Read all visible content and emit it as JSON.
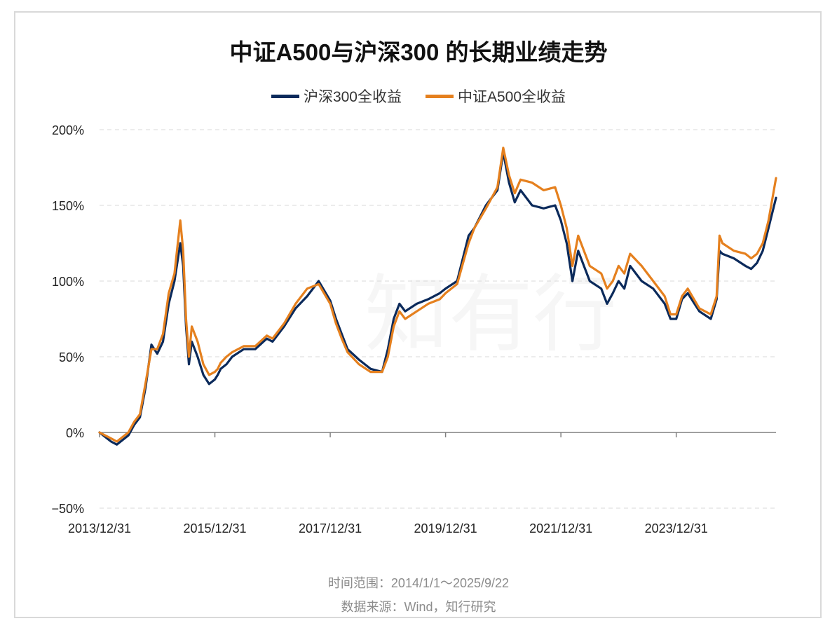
{
  "title": "中证A500与沪深300 的长期业绩走势",
  "footer": {
    "time_range": "时间范围：2014/1/1～2025/9/22",
    "source": "数据来源：Wind，知行研究"
  },
  "watermark": "知有行",
  "colors": {
    "hs300": "#0b2a5b",
    "a500": "#e5801e",
    "grid": "#d9d9d9",
    "axis": "#808080"
  },
  "chart_data": {
    "type": "line",
    "title": "中证A500与沪深300 的长期业绩走势",
    "xlabel": "",
    "ylabel": "",
    "ylim": [
      -50,
      200
    ],
    "yticks": [
      -50,
      0,
      50,
      100,
      150,
      200
    ],
    "ytick_labels": [
      "−50%",
      "0%",
      "50%",
      "100%",
      "150%",
      "200%"
    ],
    "xlim": [
      2014.0,
      2025.73
    ],
    "xticks": [
      2014.0,
      2016.0,
      2018.0,
      2020.0,
      2022.0,
      2024.0
    ],
    "xtick_labels": [
      "2013/12/31",
      "2015/12/31",
      "2017/12/31",
      "2019/12/31",
      "2021/12/31",
      "2023/12/31"
    ],
    "legend_position": "top-center",
    "series": [
      {
        "name": "沪深300全收益",
        "color": "#0b2a5b",
        "x": [
          2014.0,
          2014.1,
          2014.2,
          2014.3,
          2014.4,
          2014.5,
          2014.6,
          2014.7,
          2014.8,
          2014.9,
          2015.0,
          2015.1,
          2015.2,
          2015.3,
          2015.4,
          2015.45,
          2015.5,
          2015.55,
          2015.6,
          2015.7,
          2015.8,
          2015.9,
          2016.0,
          2016.05,
          2016.1,
          2016.2,
          2016.3,
          2016.5,
          2016.7,
          2016.9,
          2017.0,
          2017.2,
          2017.4,
          2017.6,
          2017.8,
          2018.0,
          2018.1,
          2018.2,
          2018.3,
          2018.5,
          2018.7,
          2018.9,
          2019.0,
          2019.1,
          2019.2,
          2019.3,
          2019.5,
          2019.7,
          2019.9,
          2020.0,
          2020.2,
          2020.4,
          2020.5,
          2020.7,
          2020.9,
          2021.0,
          2021.1,
          2021.2,
          2021.3,
          2021.5,
          2021.7,
          2021.9,
          2022.0,
          2022.1,
          2022.2,
          2022.3,
          2022.4,
          2022.5,
          2022.7,
          2022.8,
          2022.9,
          2023.0,
          2023.1,
          2023.2,
          2023.4,
          2023.6,
          2023.8,
          2023.9,
          2024.0,
          2024.1,
          2024.2,
          2024.4,
          2024.6,
          2024.7,
          2024.75,
          2024.8,
          2025.0,
          2025.2,
          2025.3,
          2025.4,
          2025.5,
          2025.6,
          2025.73
        ],
        "values": [
          0,
          -3,
          -6,
          -8,
          -5,
          -2,
          5,
          10,
          30,
          58,
          52,
          60,
          85,
          100,
          125,
          110,
          70,
          45,
          60,
          50,
          38,
          32,
          35,
          38,
          42,
          45,
          50,
          55,
          55,
          62,
          60,
          70,
          82,
          90,
          100,
          87,
          75,
          65,
          55,
          48,
          42,
          40,
          55,
          75,
          85,
          80,
          85,
          88,
          92,
          95,
          100,
          130,
          135,
          150,
          160,
          185,
          165,
          152,
          160,
          150,
          148,
          150,
          140,
          125,
          100,
          120,
          110,
          100,
          95,
          85,
          92,
          100,
          95,
          110,
          100,
          95,
          85,
          75,
          75,
          88,
          92,
          80,
          75,
          88,
          120,
          118,
          115,
          110,
          108,
          112,
          120,
          135,
          155
        ]
      },
      {
        "name": "中证A500全收益",
        "color": "#e5801e",
        "x": [
          2014.0,
          2014.1,
          2014.2,
          2014.3,
          2014.4,
          2014.5,
          2014.6,
          2014.7,
          2014.8,
          2014.9,
          2015.0,
          2015.1,
          2015.2,
          2015.3,
          2015.4,
          2015.45,
          2015.5,
          2015.55,
          2015.6,
          2015.7,
          2015.8,
          2015.9,
          2016.0,
          2016.05,
          2016.1,
          2016.2,
          2016.3,
          2016.5,
          2016.7,
          2016.9,
          2017.0,
          2017.2,
          2017.4,
          2017.6,
          2017.8,
          2018.0,
          2018.1,
          2018.2,
          2018.3,
          2018.5,
          2018.7,
          2018.9,
          2019.0,
          2019.1,
          2019.2,
          2019.3,
          2019.5,
          2019.7,
          2019.9,
          2020.0,
          2020.2,
          2020.4,
          2020.5,
          2020.7,
          2020.9,
          2021.0,
          2021.1,
          2021.2,
          2021.3,
          2021.5,
          2021.7,
          2021.9,
          2022.0,
          2022.1,
          2022.2,
          2022.3,
          2022.4,
          2022.5,
          2022.7,
          2022.8,
          2022.9,
          2023.0,
          2023.1,
          2023.2,
          2023.4,
          2023.6,
          2023.8,
          2023.9,
          2024.0,
          2024.1,
          2024.2,
          2024.4,
          2024.6,
          2024.7,
          2024.75,
          2024.8,
          2025.0,
          2025.2,
          2025.3,
          2025.4,
          2025.5,
          2025.6,
          2025.73
        ],
        "values": [
          0,
          -2,
          -4,
          -6,
          -3,
          0,
          7,
          12,
          33,
          55,
          55,
          65,
          92,
          105,
          140,
          120,
          75,
          50,
          70,
          60,
          45,
          38,
          40,
          42,
          46,
          50,
          53,
          57,
          57,
          64,
          62,
          72,
          85,
          95,
          98,
          85,
          72,
          62,
          53,
          45,
          40,
          40,
          50,
          70,
          80,
          75,
          80,
          85,
          88,
          92,
          98,
          125,
          135,
          148,
          162,
          188,
          170,
          158,
          167,
          165,
          160,
          162,
          150,
          135,
          110,
          130,
          120,
          110,
          105,
          95,
          100,
          110,
          105,
          118,
          110,
          100,
          90,
          78,
          78,
          90,
          95,
          82,
          78,
          90,
          130,
          125,
          120,
          118,
          115,
          118,
          125,
          140,
          168
        ]
      }
    ]
  }
}
